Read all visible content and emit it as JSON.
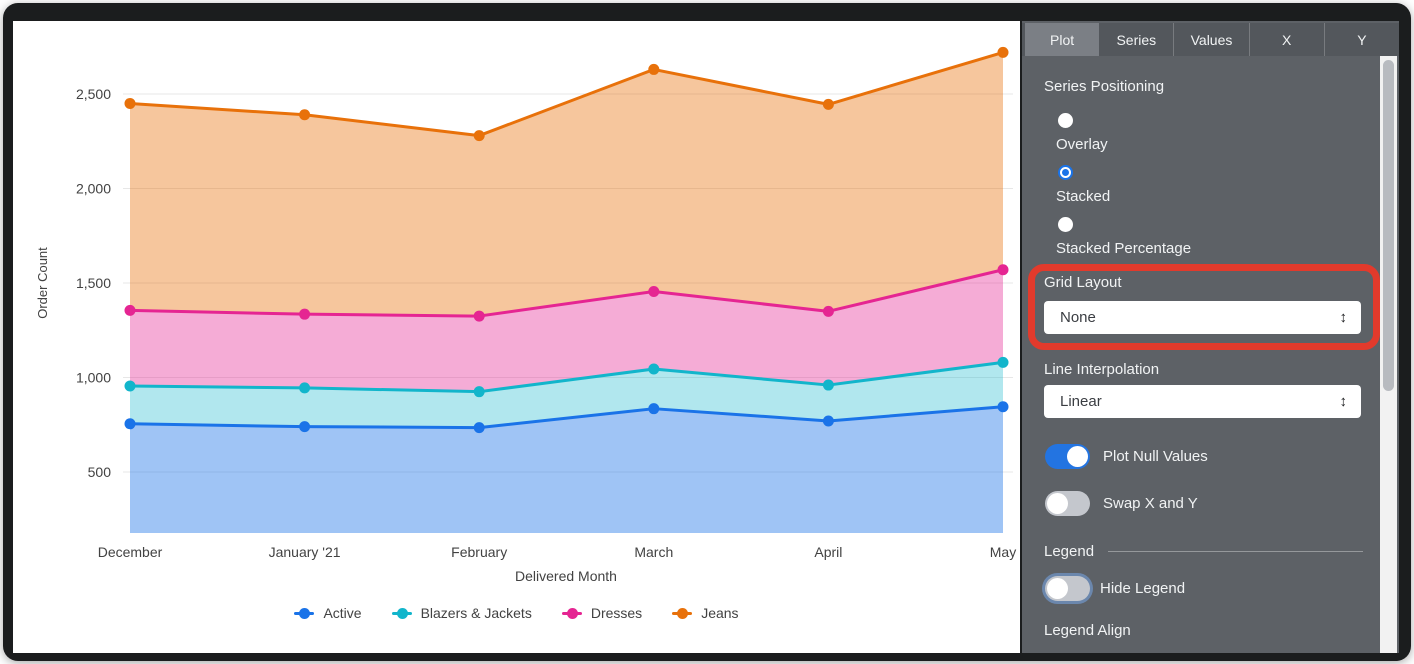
{
  "chart_data": {
    "type": "area",
    "stacked": true,
    "xlabel": "Delivered Month",
    "ylabel": "Order Count",
    "categories": [
      "December",
      "January '21",
      "February",
      "March",
      "April",
      "May"
    ],
    "series": [
      {
        "name": "Active",
        "color": "#1A73E8",
        "fill": "rgba(26,115,232,0.42)",
        "values": [
          755,
          740,
          735,
          835,
          770,
          845
        ]
      },
      {
        "name": "Blazers & Jackets",
        "color": "#12B5CB",
        "fill": "rgba(18,181,203,0.33)",
        "values": [
          200,
          205,
          190,
          210,
          190,
          235
        ]
      },
      {
        "name": "Dresses",
        "color": "#E52592",
        "fill": "rgba(229,37,146,0.38)",
        "values": [
          400,
          390,
          400,
          410,
          390,
          490
        ]
      },
      {
        "name": "Jeans",
        "color": "#E8710A",
        "fill": "rgba(232,113,10,0.40)",
        "values": [
          1095,
          1055,
          955,
          1175,
          1095,
          1150
        ]
      }
    ],
    "stacked_totals_cumulative": {
      "Active": [
        755,
        740,
        735,
        835,
        770,
        845
      ],
      "Blazers & Jackets": [
        955,
        945,
        925,
        1045,
        960,
        1080
      ],
      "Dresses": [
        1355,
        1335,
        1325,
        1455,
        1350,
        1570
      ],
      "Jeans": [
        2450,
        2390,
        2280,
        2630,
        2445,
        2720
      ]
    },
    "y_ticks": [
      500,
      1000,
      1500,
      2000,
      2500
    ],
    "y_tick_labels": [
      "500",
      "1,000",
      "1,500",
      "2,000",
      "2,500"
    ],
    "ylim": [
      175,
      2875
    ],
    "grid": "horizontal",
    "legend_position": "bottom"
  },
  "panel": {
    "tabs": [
      {
        "label": "Plot",
        "active": true
      },
      {
        "label": "Series",
        "active": false
      },
      {
        "label": "Values",
        "active": false
      },
      {
        "label": "X",
        "active": false
      },
      {
        "label": "Y",
        "active": false
      }
    ],
    "series_positioning": {
      "label": "Series Positioning",
      "options": [
        {
          "label": "Overlay",
          "selected": false
        },
        {
          "label": "Stacked",
          "selected": true
        },
        {
          "label": "Stacked Percentage",
          "selected": false
        }
      ]
    },
    "grid_layout": {
      "label": "Grid Layout",
      "value": "None"
    },
    "line_interpolation": {
      "label": "Line Interpolation",
      "value": "Linear"
    },
    "toggles": [
      {
        "label": "Plot Null Values",
        "on": true
      },
      {
        "label": "Swap X and Y",
        "on": false
      }
    ],
    "legend_section": {
      "label": "Legend"
    },
    "hide_legend": {
      "label": "Hide Legend",
      "on": false,
      "focused": true
    },
    "legend_align": {
      "label": "Legend Align"
    },
    "select_arrow_glyph": "↕"
  },
  "annotation": {
    "shape": "rounded-rectangle",
    "color": "#E23A2C",
    "highlights": "Grid Layout dropdown"
  },
  "colors": {
    "panel_bg": "#5D6166",
    "tab_bg": "#53575C",
    "tab_active_bg": "#7B7F85",
    "accent_blue": "#1A73E8",
    "toggle_on": "#2374E1",
    "toggle_off": "#C4C7CD",
    "scrollbar_thumb": "#B8BBC0",
    "grid_line": "#E7E7E7",
    "chart_text": "#424242",
    "panel_text": "#F1F3F4"
  }
}
